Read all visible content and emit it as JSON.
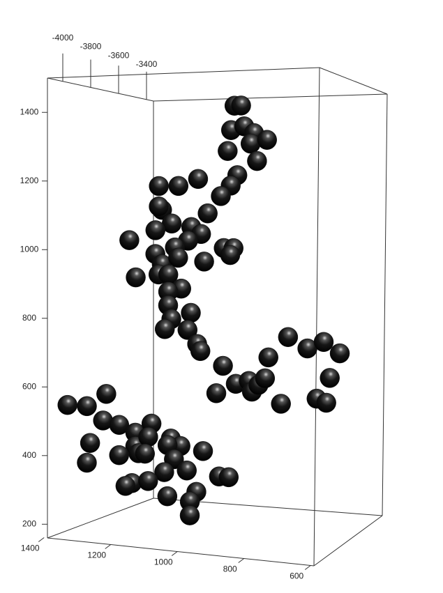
{
  "chart_data": {
    "type": "scatter3d",
    "x": [
      900,
      880,
      910,
      870,
      840,
      920,
      850,
      800,
      830,
      890,
      910,
      940,
      1010,
      1070,
      1130,
      1120,
      1130,
      1090,
      1140,
      1030,
      980,
      1000,
      1040,
      1220,
      1080,
      1140,
      1120,
      1070,
      930,
      900,
      910,
      990,
      1200,
      1130,
      1100,
      1060,
      1100,
      1100,
      1090,
      1030,
      1110,
      1040,
      1010,
      1000,
      930,
      950,
      890,
      850,
      840,
      820,
      800,
      790,
      730,
      670,
      620,
      570,
      600,
      640,
      610,
      750,
      1410,
      1350,
      1290,
      1300,
      1250,
      1340,
      1350,
      1200,
      1150,
      1200,
      1160,
      1090,
      1060,
      1100,
      1250,
      1190,
      1170,
      1080,
      990,
      1110,
      1040,
      1210,
      1160,
      1230,
      1100,
      1010,
      940,
      910,
      1030,
      1030
    ],
    "y": [
      -3920,
      -3920,
      -3920,
      -3920,
      -3920,
      -3920,
      -3920,
      -3920,
      -3920,
      -3920,
      -3920,
      -3920,
      -3920,
      -3920,
      -3920,
      -3920,
      -3920,
      -3920,
      -3920,
      -3920,
      -3920,
      -3920,
      -3920,
      -3920,
      -3920,
      -3920,
      -3920,
      -3920,
      -3920,
      -3920,
      -3920,
      -3920,
      -3920,
      -3920,
      -3920,
      -3920,
      -3920,
      -3920,
      -3920,
      -3920,
      -3920,
      -3920,
      -3920,
      -3920,
      -3920,
      -3920,
      -3920,
      -3920,
      -3920,
      -3920,
      -3920,
      -3920,
      -3920,
      -3920,
      -3920,
      -3920,
      -3920,
      -3920,
      -3920,
      -3920,
      -3920,
      -3920,
      -3920,
      -3920,
      -3920,
      -3920,
      -3920,
      -3920,
      -3920,
      -3920,
      -3920,
      -3920,
      -3920,
      -3920,
      -3920,
      -3920,
      -3920,
      -3920,
      -3920,
      -3920,
      -3920,
      -3920,
      -3920,
      -3920,
      -3920,
      -3920,
      -3920,
      -3920,
      -3920,
      -3920
    ],
    "z": [
      1420,
      1420,
      1350,
      1360,
      1340,
      1290,
      1310,
      1320,
      1260,
      1220,
      1190,
      1160,
      1210,
      1190,
      1190,
      1120,
      1130,
      1080,
      1060,
      1070,
      1110,
      1050,
      1030,
      1030,
      1010,
      990,
      960,
      980,
      1010,
      1010,
      990,
      970,
      920,
      930,
      930,
      890,
      880,
      840,
      800,
      820,
      770,
      770,
      730,
      710,
      670,
      590,
      620,
      630,
      600,
      620,
      640,
      700,
      760,
      730,
      750,
      720,
      650,
      590,
      580,
      570,
      530,
      530,
      570,
      490,
      480,
      420,
      360,
      460,
      490,
      420,
      450,
      450,
      430,
      430,
      390,
      400,
      400,
      390,
      420,
      350,
      360,
      310,
      320,
      300,
      280,
      300,
      350,
      350,
      270,
      230
    ],
    "color": "#111111",
    "xlim": [
      1390,
      590
    ],
    "ylim": [
      -4110,
      -3350
    ],
    "zlim": [
      160,
      1500
    ],
    "xticks": [
      1400,
      1200,
      1000,
      800,
      600
    ],
    "yticks": [
      -4000,
      -3800,
      -3600,
      -3400
    ],
    "zticks": [
      200,
      400,
      600,
      800,
      1000,
      1200,
      1400
    ]
  }
}
